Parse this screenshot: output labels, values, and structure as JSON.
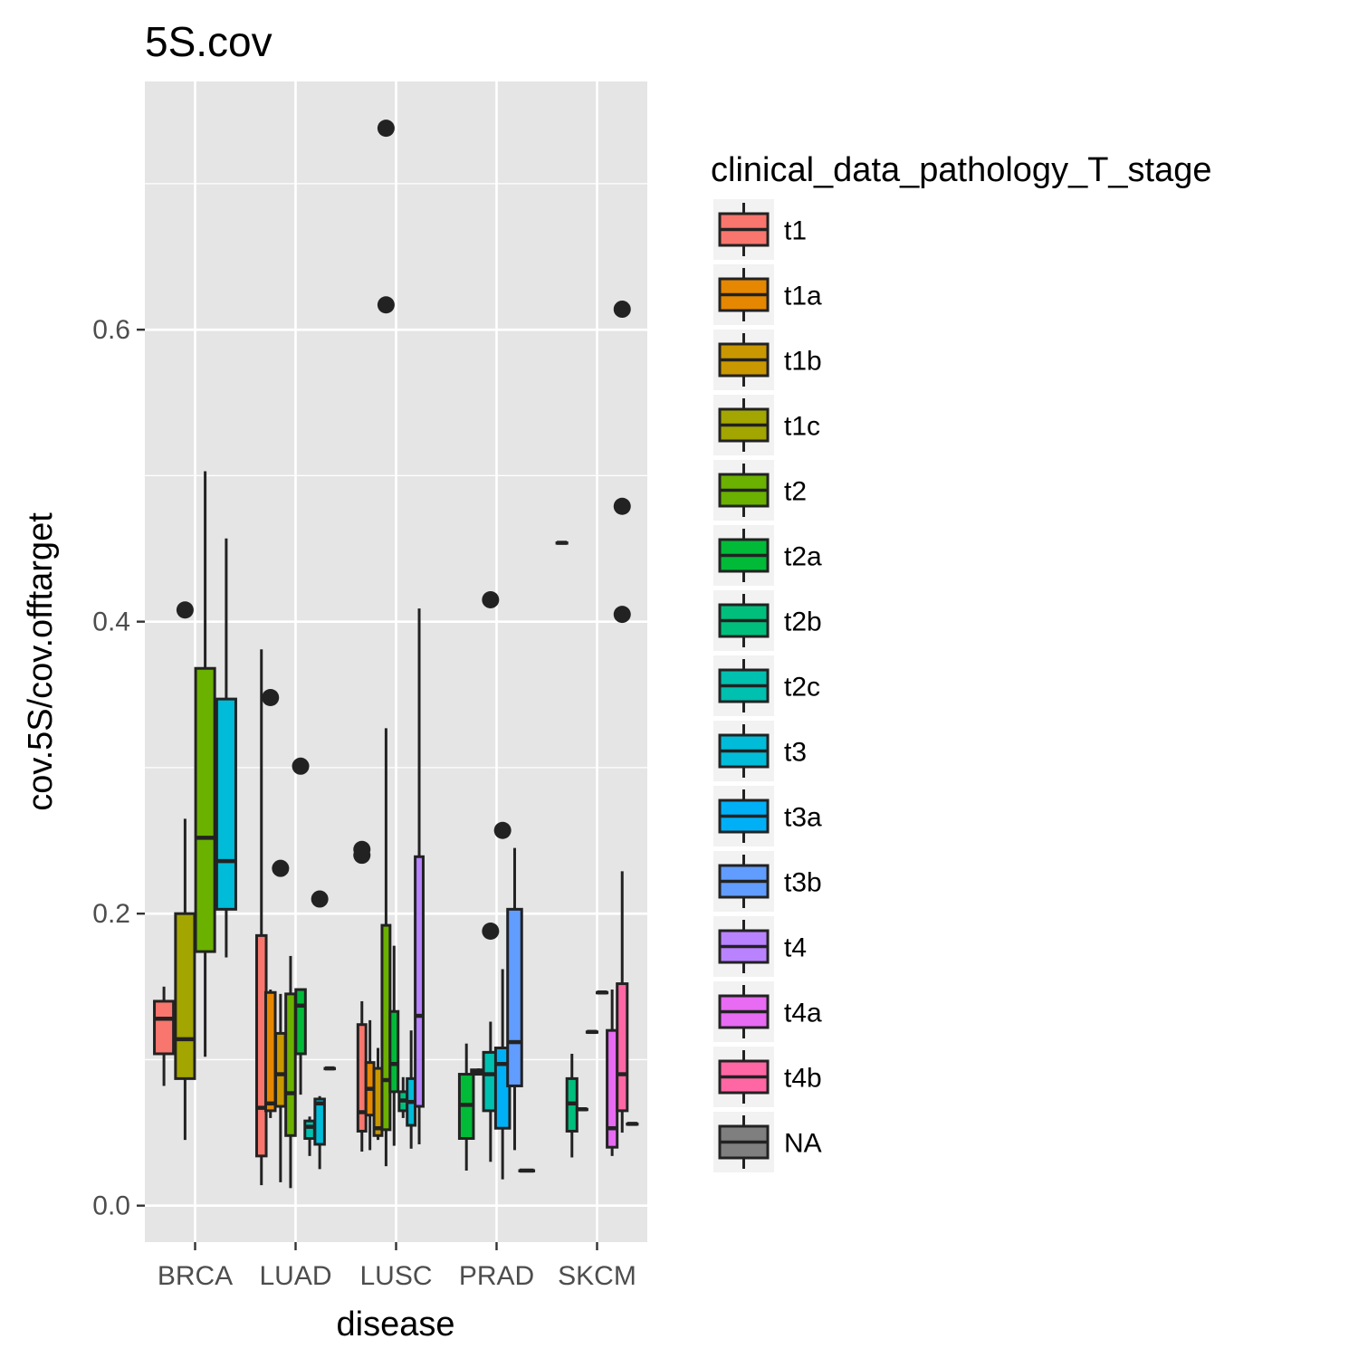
{
  "chart_data": {
    "type": "boxplot",
    "title": "5S.cov",
    "xlabel": "disease",
    "ylabel": "cov.5S/cov.offtarget",
    "ylim": [
      -0.025,
      0.77
    ],
    "y_ticks": [
      0.0,
      0.2,
      0.4,
      0.6
    ],
    "y_tick_labels": [
      "0.0",
      "0.2",
      "0.4",
      "0.6"
    ],
    "categories": [
      "BRCA",
      "LUAD",
      "LUSC",
      "PRAD",
      "SKCM"
    ],
    "grid": true,
    "legend": {
      "title": "clinical_data_pathology_T_stage",
      "position": "right",
      "entries": [
        {
          "label": "t1",
          "color": "#F8766D"
        },
        {
          "label": "t1a",
          "color": "#E58700"
        },
        {
          "label": "t1b",
          "color": "#C99800"
        },
        {
          "label": "t1c",
          "color": "#A3A500"
        },
        {
          "label": "t2",
          "color": "#6BB100"
        },
        {
          "label": "t2a",
          "color": "#00BA38"
        },
        {
          "label": "t2b",
          "color": "#00BF7D"
        },
        {
          "label": "t2c",
          "color": "#00C0AF"
        },
        {
          "label": "t3",
          "color": "#00BCD8"
        },
        {
          "label": "t3a",
          "color": "#00B0F6"
        },
        {
          "label": "t3b",
          "color": "#619CFF"
        },
        {
          "label": "t4",
          "color": "#B983FF"
        },
        {
          "label": "t4a",
          "color": "#E76BF3"
        },
        {
          "label": "t4b",
          "color": "#FF67A4"
        },
        {
          "label": "NA",
          "color": "#7F7F7F"
        }
      ]
    },
    "boxes": [
      {
        "category": "BRCA",
        "stage": "t1",
        "xoff": -0.31,
        "width": 0.19,
        "min": 0.082,
        "q1": 0.104,
        "median": 0.128,
        "q3": 0.14,
        "max": 0.15,
        "outliers": []
      },
      {
        "category": "BRCA",
        "stage": "t1c",
        "xoff": -0.1,
        "width": 0.19,
        "min": 0.045,
        "q1": 0.087,
        "median": 0.114,
        "q3": 0.2,
        "max": 0.265,
        "outliers": [
          0.408
        ]
      },
      {
        "category": "BRCA",
        "stage": "t2",
        "xoff": 0.1,
        "width": 0.19,
        "min": 0.102,
        "q1": 0.174,
        "median": 0.252,
        "q3": 0.368,
        "max": 0.503,
        "outliers": []
      },
      {
        "category": "BRCA",
        "stage": "t3",
        "xoff": 0.31,
        "width": 0.19,
        "min": 0.17,
        "q1": 0.203,
        "median": 0.236,
        "q3": 0.347,
        "max": 0.457,
        "outliers": []
      },
      {
        "category": "LUAD",
        "stage": "t1",
        "xoff": -0.34,
        "width": 0.095,
        "min": 0.014,
        "q1": 0.034,
        "median": 0.067,
        "q3": 0.185,
        "max": 0.381,
        "outliers": []
      },
      {
        "category": "LUAD",
        "stage": "t1a",
        "xoff": -0.25,
        "width": 0.095,
        "min": 0.06,
        "q1": 0.065,
        "median": 0.07,
        "q3": 0.146,
        "max": 0.148,
        "outliers": [
          0.348
        ]
      },
      {
        "category": "LUAD",
        "stage": "t1b",
        "xoff": -0.15,
        "width": 0.095,
        "min": 0.016,
        "q1": 0.068,
        "median": 0.09,
        "q3": 0.118,
        "max": 0.145,
        "outliers": [
          0.231
        ]
      },
      {
        "category": "LUAD",
        "stage": "t2",
        "xoff": -0.05,
        "width": 0.095,
        "min": 0.012,
        "q1": 0.048,
        "median": 0.077,
        "q3": 0.145,
        "max": 0.171,
        "outliers": []
      },
      {
        "category": "LUAD",
        "stage": "t2a",
        "xoff": 0.05,
        "width": 0.095,
        "min": 0.076,
        "q1": 0.104,
        "median": 0.137,
        "q3": 0.148,
        "max": 0.148,
        "outliers": [
          0.301
        ]
      },
      {
        "category": "LUAD",
        "stage": "t2c",
        "xoff": 0.14,
        "width": 0.095,
        "min": 0.034,
        "q1": 0.046,
        "median": 0.054,
        "q3": 0.058,
        "max": 0.061,
        "outliers": []
      },
      {
        "category": "LUAD",
        "stage": "t3",
        "xoff": 0.24,
        "width": 0.095,
        "min": 0.025,
        "q1": 0.042,
        "median": 0.07,
        "q3": 0.073,
        "max": 0.075,
        "outliers": [
          0.21
        ]
      },
      {
        "category": "LUAD",
        "stage": "t3a",
        "xoff": 0.34,
        "width": 0.095,
        "min": 0.094,
        "q1": 0.094,
        "median": 0.094,
        "q3": 0.094,
        "max": 0.094,
        "outliers": []
      },
      {
        "category": "LUSC",
        "stage": "t1",
        "xoff": -0.34,
        "width": 0.08,
        "min": 0.037,
        "q1": 0.051,
        "median": 0.064,
        "q3": 0.124,
        "max": 0.14,
        "outliers": [
          0.24,
          0.244
        ]
      },
      {
        "category": "LUSC",
        "stage": "t1a",
        "xoff": -0.26,
        "width": 0.08,
        "min": 0.038,
        "q1": 0.062,
        "median": 0.08,
        "q3": 0.098,
        "max": 0.127,
        "outliers": []
      },
      {
        "category": "LUSC",
        "stage": "t1b",
        "xoff": -0.18,
        "width": 0.08,
        "min": 0.045,
        "q1": 0.048,
        "median": 0.053,
        "q3": 0.094,
        "max": 0.108,
        "outliers": []
      },
      {
        "category": "LUSC",
        "stage": "t2",
        "xoff": -0.1,
        "width": 0.08,
        "min": 0.027,
        "q1": 0.052,
        "median": 0.086,
        "q3": 0.192,
        "max": 0.327,
        "outliers": [
          0.617,
          0.738
        ]
      },
      {
        "category": "LUSC",
        "stage": "t2a",
        "xoff": -0.02,
        "width": 0.08,
        "min": 0.041,
        "q1": 0.078,
        "median": 0.097,
        "q3": 0.133,
        "max": 0.178,
        "outliers": []
      },
      {
        "category": "LUSC",
        "stage": "t2b",
        "xoff": 0.07,
        "width": 0.08,
        "min": 0.06,
        "q1": 0.065,
        "median": 0.072,
        "q3": 0.078,
        "max": 0.088,
        "outliers": []
      },
      {
        "category": "LUSC",
        "stage": "t3",
        "xoff": 0.15,
        "width": 0.08,
        "min": 0.039,
        "q1": 0.055,
        "median": 0.071,
        "q3": 0.087,
        "max": 0.12,
        "outliers": []
      },
      {
        "category": "LUSC",
        "stage": "t4",
        "xoff": 0.23,
        "width": 0.08,
        "min": 0.042,
        "q1": 0.068,
        "median": 0.13,
        "q3": 0.239,
        "max": 0.409,
        "outliers": []
      },
      {
        "category": "PRAD",
        "stage": "t2a",
        "xoff": -0.3,
        "width": 0.14,
        "min": 0.024,
        "q1": 0.046,
        "median": 0.069,
        "q3": 0.09,
        "max": 0.111,
        "outliers": []
      },
      {
        "category": "PRAD",
        "stage": "t2b",
        "xoff": -0.18,
        "width": 0.14,
        "min": 0.09,
        "q1": 0.09,
        "median": 0.092,
        "q3": 0.093,
        "max": 0.094,
        "outliers": []
      },
      {
        "category": "PRAD",
        "stage": "t2c",
        "xoff": -0.06,
        "width": 0.14,
        "min": 0.03,
        "q1": 0.065,
        "median": 0.09,
        "q3": 0.105,
        "max": 0.126,
        "outliers": [
          0.188,
          0.415
        ]
      },
      {
        "category": "PRAD",
        "stage": "t3a",
        "xoff": 0.06,
        "width": 0.14,
        "min": 0.018,
        "q1": 0.053,
        "median": 0.097,
        "q3": 0.108,
        "max": 0.162,
        "outliers": [
          0.257
        ]
      },
      {
        "category": "PRAD",
        "stage": "t3b",
        "xoff": 0.18,
        "width": 0.14,
        "min": 0.038,
        "q1": 0.082,
        "median": 0.112,
        "q3": 0.203,
        "max": 0.245,
        "outliers": []
      },
      {
        "category": "PRAD",
        "stage": "t4",
        "xoff": 0.3,
        "width": 0.14,
        "min": 0.024,
        "q1": 0.024,
        "median": 0.024,
        "q3": 0.024,
        "max": 0.024,
        "outliers": []
      },
      {
        "category": "SKCM",
        "stage": "t2",
        "xoff": -0.35,
        "width": 0.1,
        "min": 0.454,
        "q1": 0.454,
        "median": 0.454,
        "q3": 0.454,
        "max": 0.454,
        "outliers": []
      },
      {
        "category": "SKCM",
        "stage": "t2b",
        "xoff": -0.25,
        "width": 0.1,
        "min": 0.033,
        "q1": 0.051,
        "median": 0.07,
        "q3": 0.087,
        "max": 0.104,
        "outliers": []
      },
      {
        "category": "SKCM",
        "stage": "t2c",
        "xoff": -0.15,
        "width": 0.1,
        "min": 0.066,
        "q1": 0.066,
        "median": 0.066,
        "q3": 0.066,
        "max": 0.066,
        "outliers": []
      },
      {
        "category": "SKCM",
        "stage": "t3",
        "xoff": -0.05,
        "width": 0.1,
        "min": 0.119,
        "q1": 0.119,
        "median": 0.119,
        "q3": 0.119,
        "max": 0.119,
        "outliers": []
      },
      {
        "category": "SKCM",
        "stage": "t3a",
        "xoff": 0.05,
        "width": 0.1,
        "min": 0.146,
        "q1": 0.146,
        "median": 0.146,
        "q3": 0.146,
        "max": 0.146,
        "outliers": []
      },
      {
        "category": "SKCM",
        "stage": "t4a",
        "xoff": 0.15,
        "width": 0.1,
        "min": 0.034,
        "q1": 0.04,
        "median": 0.053,
        "q3": 0.12,
        "max": 0.148,
        "outliers": []
      },
      {
        "category": "SKCM",
        "stage": "t4b",
        "xoff": 0.25,
        "width": 0.1,
        "min": 0.05,
        "q1": 0.065,
        "median": 0.09,
        "q3": 0.152,
        "max": 0.229,
        "outliers": [
          0.405,
          0.479,
          0.614
        ]
      },
      {
        "category": "SKCM",
        "stage": "NA",
        "xoff": 0.35,
        "width": 0.1,
        "min": 0.056,
        "q1": 0.056,
        "median": 0.056,
        "q3": 0.056,
        "max": 0.056,
        "outliers": []
      }
    ]
  }
}
